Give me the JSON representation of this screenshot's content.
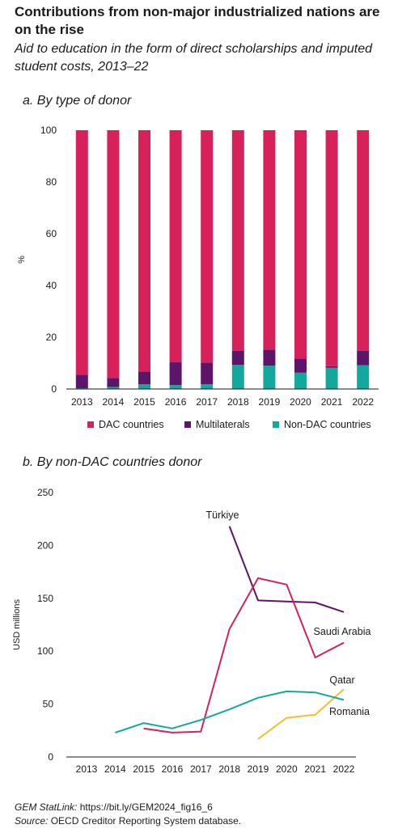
{
  "title": "Contributions from non-major industrialized nations are on the rise",
  "subtitle": "Aid to education in the form of direct scholarships and imputed student costs, 2013–22",
  "colors": {
    "dac": "#D8205A",
    "multilaterals": "#5C1569",
    "non_dac": "#13A89E",
    "turkiye": "#5C1569",
    "saudi_arabia": "#D8205A",
    "qatar": "#F5BE2C",
    "romania": "#13A89E",
    "axis": "#1a1a1a",
    "grid": "#cccccc"
  },
  "footer": {
    "statlink_label": "GEM StatLink:",
    "statlink_url": "https://bit.ly/GEM2024_fig16_6",
    "source_label": "Source:",
    "source_text": "OECD Creditor Reporting System database."
  },
  "chart_data": [
    {
      "panel_title": "a. By type of donor",
      "type": "bar",
      "stacked": true,
      "categories": [
        "2013",
        "2014",
        "2015",
        "2016",
        "2017",
        "2018",
        "2019",
        "2020",
        "2021",
        "2022"
      ],
      "series": [
        {
          "name": "Non-DAC countries",
          "color_key": "non_dac",
          "values": [
            0.3,
            0.8,
            1.8,
            1.5,
            1.8,
            9.3,
            9.0,
            6.3,
            8.2,
            9.2
          ]
        },
        {
          "name": "Multilaterals",
          "color_key": "multilaterals",
          "values": [
            5.2,
            3.5,
            5.0,
            8.8,
            8.4,
            5.4,
            6.2,
            5.5,
            0.6,
            5.5
          ]
        },
        {
          "name": "DAC countries",
          "color_key": "dac",
          "values": [
            94.5,
            95.7,
            93.2,
            89.7,
            89.8,
            85.3,
            84.8,
            88.2,
            91.2,
            85.3
          ]
        }
      ],
      "legend": [
        "DAC countries",
        "Multilaterals",
        "Non-DAC countries"
      ],
      "legend_position": "bottom",
      "ylabel": "%",
      "ylim": [
        0,
        100
      ],
      "yticks": [
        0,
        20,
        40,
        60,
        80,
        100
      ]
    },
    {
      "panel_title": "b. By non-DAC countries donor",
      "type": "line",
      "x": [
        "2013",
        "2014",
        "2015",
        "2016",
        "2017",
        "2018",
        "2019",
        "2020",
        "2021",
        "2022"
      ],
      "series": [
        {
          "name": "Türkiye",
          "color_key": "turkiye",
          "values": [
            null,
            null,
            null,
            null,
            null,
            218,
            148,
            147,
            146,
            137
          ]
        },
        {
          "name": "Saudi Arabia",
          "color_key": "saudi_arabia",
          "values": [
            null,
            null,
            27,
            23,
            24,
            121,
            169,
            163,
            94,
            108
          ]
        },
        {
          "name": "Qatar",
          "color_key": "qatar",
          "values": [
            null,
            null,
            null,
            null,
            null,
            null,
            17,
            37,
            40,
            64
          ]
        },
        {
          "name": "Romania",
          "color_key": "romania",
          "values": [
            null,
            23,
            32,
            27,
            35,
            45,
            56,
            62,
            61,
            54
          ]
        }
      ],
      "ylabel": "USD millions",
      "ylim": [
        0,
        250
      ],
      "yticks": [
        0,
        50,
        100,
        150,
        200,
        250
      ]
    }
  ]
}
